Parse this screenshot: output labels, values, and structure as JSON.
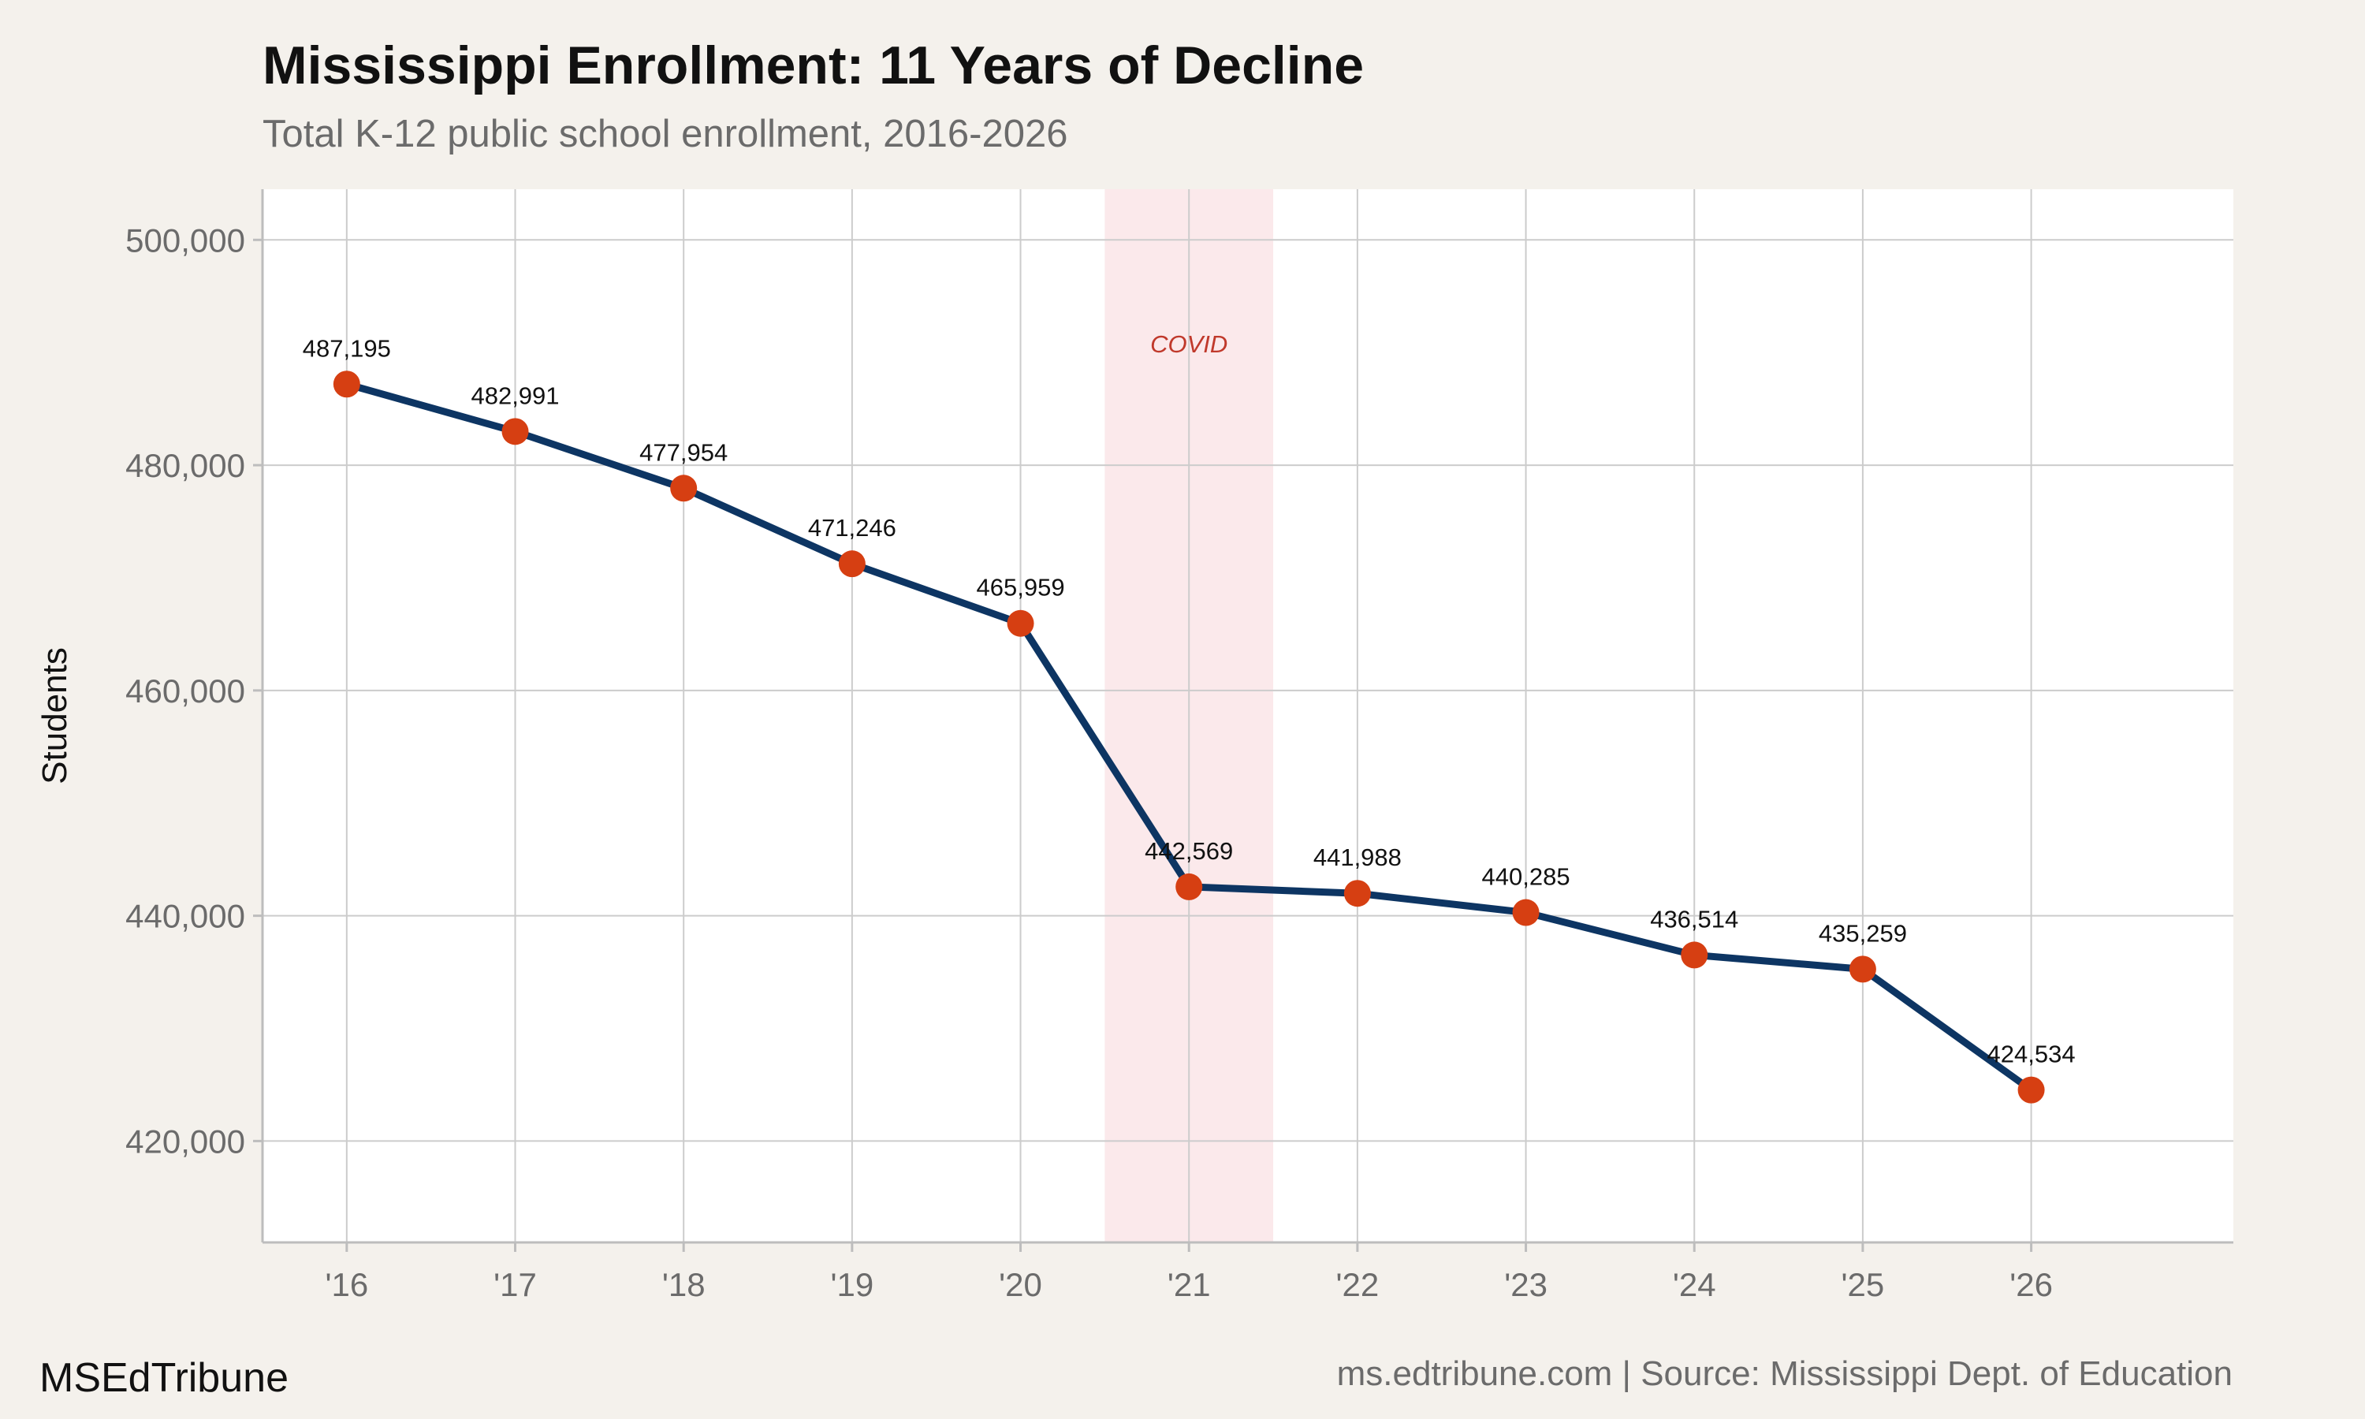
{
  "header": {
    "title": "Mississippi Enrollment: 11 Years of Decline",
    "subtitle": "Total K-12 public school enrollment, 2016-2026"
  },
  "footer": {
    "brand": "MSEdTribune",
    "source": "ms.edtribune.com | Source: Mississippi Dept. of Education"
  },
  "colors": {
    "background": "#f4f1ec",
    "panel": "#ffffff",
    "line": "#0d3563",
    "marker": "#d63f12",
    "covid_band": "#fbe9eb",
    "covid_text": "#c0392b",
    "grid": "#cccccc"
  },
  "chart_data": {
    "type": "line",
    "title": "Mississippi Enrollment: 11 Years of Decline",
    "subtitle": "Total K-12 public school enrollment, 2016-2026",
    "xlabel": "",
    "ylabel": "Students",
    "x": [
      2016,
      2017,
      2018,
      2019,
      2020,
      2021,
      2022,
      2023,
      2024,
      2025,
      2026
    ],
    "x_tick_labels": [
      "'16",
      "'17",
      "'18",
      "'19",
      "'20",
      "'21",
      "'22",
      "'23",
      "'24",
      "'25",
      "'26"
    ],
    "xlim": [
      2015.5,
      2027.2
    ],
    "y": [
      487195,
      482991,
      477954,
      471246,
      465959,
      442569,
      441988,
      440285,
      436514,
      435259,
      424534
    ],
    "value_labels": [
      "487,195",
      "482,991",
      "477,954",
      "471,246",
      "465,959",
      "442,569",
      "441,988",
      "440,285",
      "436,514",
      "435,259",
      "424,534"
    ],
    "ylim": [
      411000,
      504500
    ],
    "y_ticks": [
      420000,
      440000,
      460000,
      480000,
      500000
    ],
    "y_tick_labels": [
      "420,000",
      "440,000",
      "460,000",
      "480,000",
      "500,000"
    ],
    "grid": true,
    "legend": "none",
    "annotations": [
      {
        "type": "shaded_region",
        "x_start": 2020.5,
        "x_end": 2021.5,
        "label": "COVID",
        "label_y": 490000
      }
    ]
  }
}
